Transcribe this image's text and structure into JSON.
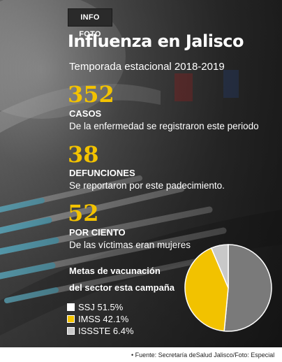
{
  "tag": "INFO FOTO",
  "title": "Influenza en Jalisco",
  "subtitle": "Temporada estacional 2018-2019",
  "stats": [
    {
      "value": "352",
      "label": "CASOS",
      "desc": "De la enfermedad se  registraron este periodo"
    },
    {
      "value": "38",
      "label": "DEFUNCIONES",
      "desc": "Se reportaron por este padecimiento."
    },
    {
      "value": "52",
      "label": "POR CIENTO",
      "desc": "De las víctimas eran mujeres"
    }
  ],
  "goals": {
    "line1": "Metas de vacunación",
    "line2": "del sector esta campaña"
  },
  "legend": [
    {
      "name": "SSJ",
      "pct": "51.5%",
      "color": "#7a7a7a",
      "swatch": "#ffffff"
    },
    {
      "name": "IMSS",
      "pct": "42.1%",
      "color": "#f2c200",
      "swatch": "#f2c200"
    },
    {
      "name": "ISSSTE",
      "pct": "6.4%",
      "color": "#c8c8c8",
      "swatch": "#c8c8c8"
    }
  ],
  "chart_data": {
    "type": "pie",
    "categories": [
      "SSJ",
      "IMSS",
      "ISSSTE"
    ],
    "values": [
      51.5,
      42.1,
      6.4
    ],
    "colors": [
      "#7a7a7a",
      "#f2c200",
      "#c8c8c8"
    ]
  },
  "footer": "• Fuente: Secretaría deSalud Jalisco/Foto: Especial"
}
